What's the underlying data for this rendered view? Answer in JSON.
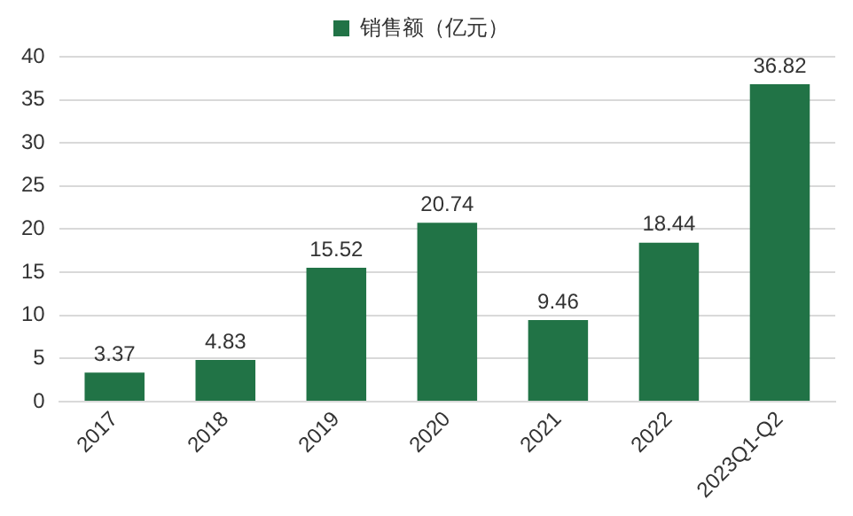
{
  "chart_data": {
    "type": "bar",
    "categories": [
      "2017",
      "2018",
      "2019",
      "2020",
      "2021",
      "2022",
      "2023Q1-Q2"
    ],
    "series": [
      {
        "name": "销售额（亿元）",
        "color": "#217346",
        "values": [
          3.37,
          4.83,
          15.52,
          20.74,
          9.46,
          18.44,
          36.82
        ]
      }
    ],
    "ylim": [
      0,
      40
    ],
    "yticks": [
      0,
      5,
      10,
      15,
      20,
      25,
      30,
      35,
      40
    ],
    "grid": "y",
    "legend": "top",
    "data_labels": true
  }
}
